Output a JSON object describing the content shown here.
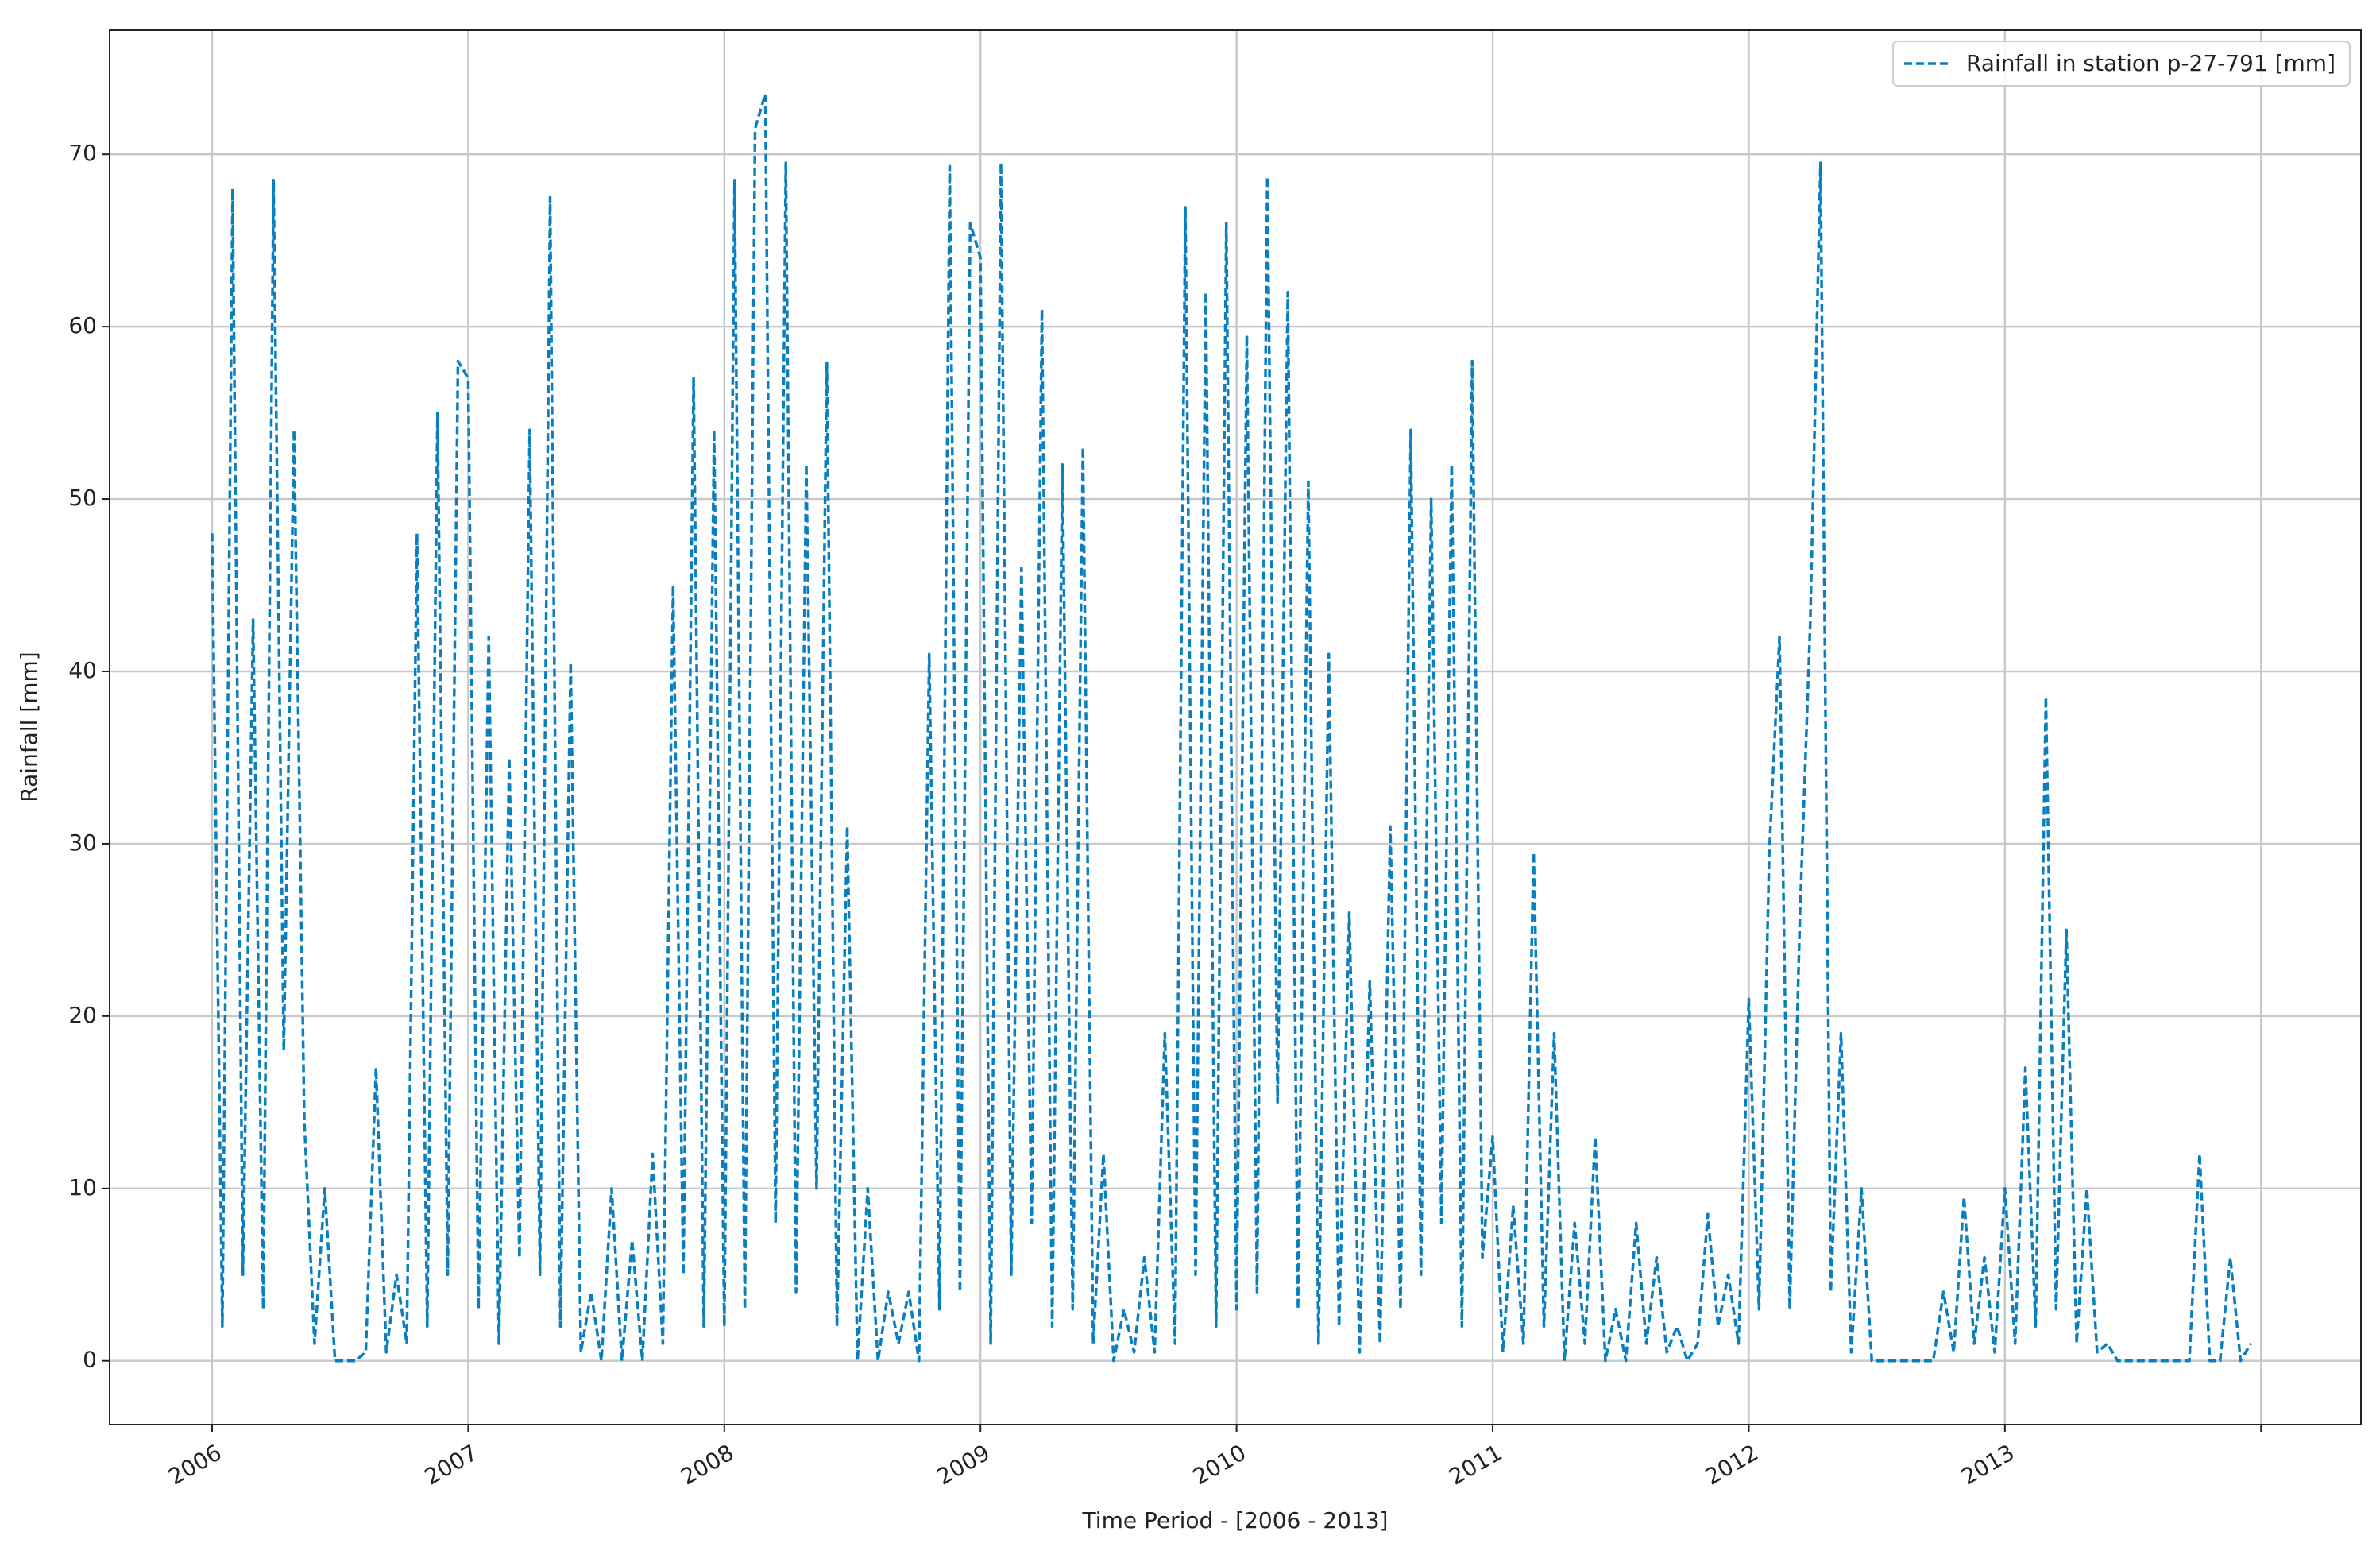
{
  "chart_data": {
    "type": "line",
    "x_label": "Time Period - [2006 - 2013]",
    "y_label": "Rainfall [mm]",
    "legend": "upper right",
    "grid": true,
    "xlim": [
      2005.6,
      2014.39
    ],
    "ylim": [
      -3.7,
      77.2
    ],
    "xticks": [
      2006,
      2007,
      2008,
      2009,
      2010,
      2011,
      2012,
      2013,
      {
        "value": 2014,
        "label": null
      }
    ],
    "yticks": [
      0,
      10,
      20,
      30,
      40,
      50,
      60,
      70
    ],
    "x": [
      2006,
      2006.04,
      2006.08,
      2006.12,
      2006.16,
      2006.2,
      2006.24,
      2006.28,
      2006.32,
      2006.36,
      2006.4,
      2006.44,
      2006.48,
      2006.52,
      2006.56,
      2006.6,
      2006.64,
      2006.68,
      2006.72,
      2006.76,
      2006.8,
      2006.84,
      2006.88,
      2006.92,
      2006.96,
      2007,
      2007.04,
      2007.08,
      2007.12,
      2007.16,
      2007.2,
      2007.24,
      2007.28,
      2007.32,
      2007.36,
      2007.4,
      2007.44,
      2007.48,
      2007.52,
      2007.56,
      2007.6,
      2007.64,
      2007.68,
      2007.72,
      2007.76,
      2007.8,
      2007.84,
      2007.88,
      2007.92,
      2007.96,
      2008,
      2008.04,
      2008.08,
      2008.12,
      2008.16,
      2008.2,
      2008.24,
      2008.28,
      2008.32,
      2008.36,
      2008.4,
      2008.44,
      2008.48,
      2008.52,
      2008.56,
      2008.6,
      2008.64,
      2008.68,
      2008.72,
      2008.76,
      2008.8,
      2008.84,
      2008.88,
      2008.92,
      2008.96,
      2009,
      2009.04,
      2009.08,
      2009.12,
      2009.16,
      2009.2,
      2009.24,
      2009.28,
      2009.32,
      2009.36,
      2009.4,
      2009.44,
      2009.48,
      2009.52,
      2009.56,
      2009.6,
      2009.64,
      2009.68,
      2009.72,
      2009.76,
      2009.8,
      2009.84,
      2009.88,
      2009.92,
      2009.96,
      2010,
      2010.04,
      2010.08,
      2010.12,
      2010.16,
      2010.2,
      2010.24,
      2010.28,
      2010.32,
      2010.36,
      2010.4,
      2010.44,
      2010.48,
      2010.52,
      2010.56,
      2010.6,
      2010.64,
      2010.68,
      2010.72,
      2010.76,
      2010.8,
      2010.84,
      2010.88,
      2010.92,
      2010.96,
      2011,
      2011.04,
      2011.08,
      2011.12,
      2011.16,
      2011.2,
      2011.24,
      2011.28,
      2011.32,
      2011.36,
      2011.4,
      2011.44,
      2011.48,
      2011.52,
      2011.56,
      2011.6,
      2011.64,
      2011.68,
      2011.72,
      2011.76,
      2011.8,
      2011.84,
      2011.88,
      2011.92,
      2011.96,
      2012,
      2012.04,
      2012.08,
      2012.12,
      2012.16,
      2012.2,
      2012.24,
      2012.28,
      2012.32,
      2012.36,
      2012.4,
      2012.44,
      2012.48,
      2012.52,
      2012.56,
      2012.6,
      2012.64,
      2012.68,
      2012.72,
      2012.76,
      2012.8,
      2012.84,
      2012.88,
      2012.92,
      2012.96,
      2013,
      2013.04,
      2013.08,
      2013.12,
      2013.16,
      2013.2,
      2013.24,
      2013.28,
      2013.32,
      2013.36,
      2013.4,
      2013.44,
      2013.48,
      2013.52,
      2013.56,
      2013.6,
      2013.64,
      2013.68,
      2013.72,
      2013.76,
      2013.8,
      2013.84,
      2013.88,
      2013.92,
      2013.96
    ],
    "series": [
      {
        "name": "Rainfall in station p-27-791 [mm]",
        "color": "#0a7fc0",
        "values": [
          48,
          2,
          68,
          5,
          43,
          3,
          68.5,
          18,
          54,
          14,
          1,
          10,
          0,
          0,
          0,
          0.5,
          17,
          0.5,
          5,
          1,
          48,
          2,
          55,
          5,
          58,
          57,
          3,
          42,
          1,
          35,
          6,
          54,
          5,
          67.5,
          2,
          40.5,
          0.5,
          4,
          0,
          10,
          0,
          7,
          0,
          12,
          1,
          45,
          5,
          57,
          2,
          54,
          2,
          68.5,
          3,
          71.5,
          73.5,
          8,
          69.5,
          4,
          52,
          10,
          58,
          2,
          31,
          0,
          10,
          0,
          4,
          1,
          4,
          0,
          41,
          3,
          69.3,
          4,
          66,
          64,
          1,
          69.5,
          5,
          46,
          8,
          61,
          2,
          52,
          3,
          53,
          1,
          12,
          0,
          3,
          0.5,
          6,
          0.5,
          19,
          1,
          67,
          5,
          62,
          2,
          66,
          3,
          59.5,
          4,
          68.7,
          15,
          62,
          3,
          51,
          1,
          41,
          2,
          26,
          0.5,
          22,
          1,
          31,
          3,
          54,
          5,
          50,
          8,
          52,
          2,
          58,
          6,
          13,
          0.5,
          9,
          1,
          29.5,
          2,
          19,
          0,
          8,
          1,
          13,
          0,
          3,
          0,
          8,
          1,
          6,
          0.5,
          2,
          0,
          1,
          8.5,
          2,
          5,
          1,
          21,
          3,
          29.5,
          42,
          3,
          26,
          42.8,
          69.5,
          4,
          19,
          0.5,
          10,
          0,
          0,
          0,
          0,
          0,
          0,
          0,
          4,
          0.5,
          9.5,
          1,
          6,
          0.5,
          10,
          1,
          17,
          2,
          38.5,
          3,
          25,
          1,
          10,
          0.5,
          1,
          0,
          0,
          0,
          0,
          0,
          0,
          0,
          0,
          12,
          0,
          0,
          6,
          0,
          1
        ]
      }
    ]
  }
}
